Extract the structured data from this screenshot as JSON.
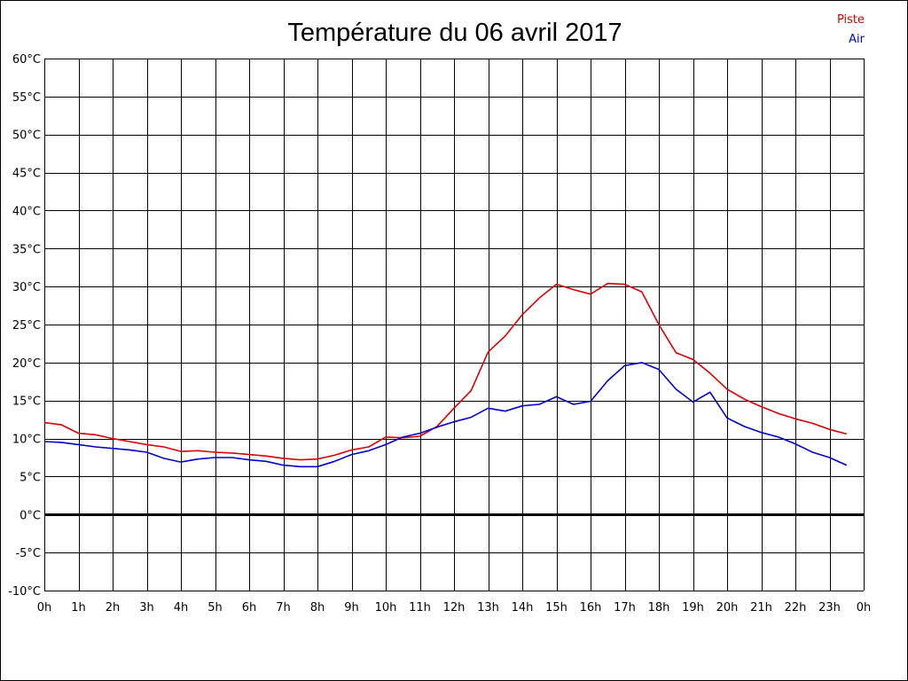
{
  "chart_data": {
    "type": "line",
    "title": "Température du 06 avril 2017",
    "xlabel": "",
    "ylabel": "",
    "ylim": [
      -10,
      60
    ],
    "yticks": [
      60,
      55,
      50,
      45,
      40,
      35,
      30,
      25,
      20,
      15,
      10,
      5,
      0,
      -5,
      -10
    ],
    "ytick_labels": [
      "60°C",
      "55°C",
      "50°C",
      "45°C",
      "40°C",
      "35°C",
      "30°C",
      "25°C",
      "20°C",
      "15°C",
      "10°C",
      "5°C",
      "0°C",
      "-5°C",
      "-10°C"
    ],
    "xlim": [
      0,
      24
    ],
    "xtick_labels": [
      "0h",
      "1h",
      "2h",
      "3h",
      "4h",
      "5h",
      "6h",
      "7h",
      "8h",
      "9h",
      "10h",
      "11h",
      "12h",
      "13h",
      "14h",
      "15h",
      "16h",
      "17h",
      "18h",
      "19h",
      "20h",
      "21h",
      "22h",
      "23h",
      "0h"
    ],
    "grid": true,
    "legend": "top-right",
    "x": [
      0,
      0.5,
      1,
      1.5,
      2,
      2.5,
      3,
      3.5,
      4,
      4.5,
      5,
      5.5,
      6,
      6.5,
      7,
      7.5,
      8,
      8.5,
      9,
      9.5,
      10,
      10.5,
      11,
      11.5,
      12,
      12.5,
      13,
      13.5,
      14,
      14.5,
      15,
      15.5,
      16,
      16.5,
      17,
      17.5,
      18,
      18.5,
      19,
      19.5,
      20,
      20.5,
      21,
      21.5,
      22,
      22.5,
      23,
      23.5
    ],
    "series": [
      {
        "name": "Piste",
        "color": "#dd0000",
        "values": [
          12.1,
          11.8,
          10.7,
          10.5,
          10.0,
          9.6,
          9.2,
          8.9,
          8.3,
          8.4,
          8.2,
          8.1,
          7.9,
          7.7,
          7.4,
          7.2,
          7.3,
          7.8,
          8.5,
          8.9,
          10.2,
          10.1,
          10.3,
          11.6,
          14.0,
          16.3,
          21.4,
          23.5,
          26.3,
          28.5,
          30.3,
          29.6,
          29.0,
          30.4,
          30.3,
          29.3,
          25.0,
          21.3,
          20.4,
          18.6,
          16.5,
          15.2,
          14.2,
          13.3,
          12.6,
          12.0,
          11.2,
          10.6
        ]
      },
      {
        "name": "Air",
        "color": "#0000cc",
        "values": [
          9.6,
          9.5,
          9.2,
          8.9,
          8.7,
          8.5,
          8.2,
          7.4,
          6.9,
          7.3,
          7.5,
          7.5,
          7.2,
          7.0,
          6.5,
          6.3,
          6.3,
          7.0,
          7.9,
          8.4,
          9.2,
          10.2,
          10.7,
          11.5,
          12.2,
          12.8,
          14.0,
          13.6,
          14.3,
          14.5,
          15.5,
          14.5,
          14.9,
          17.6,
          19.6,
          20.0,
          19.1,
          16.5,
          14.8,
          16.1,
          12.7,
          11.6,
          10.8,
          10.2,
          9.3,
          8.2,
          7.5,
          6.5
        ]
      }
    ]
  }
}
